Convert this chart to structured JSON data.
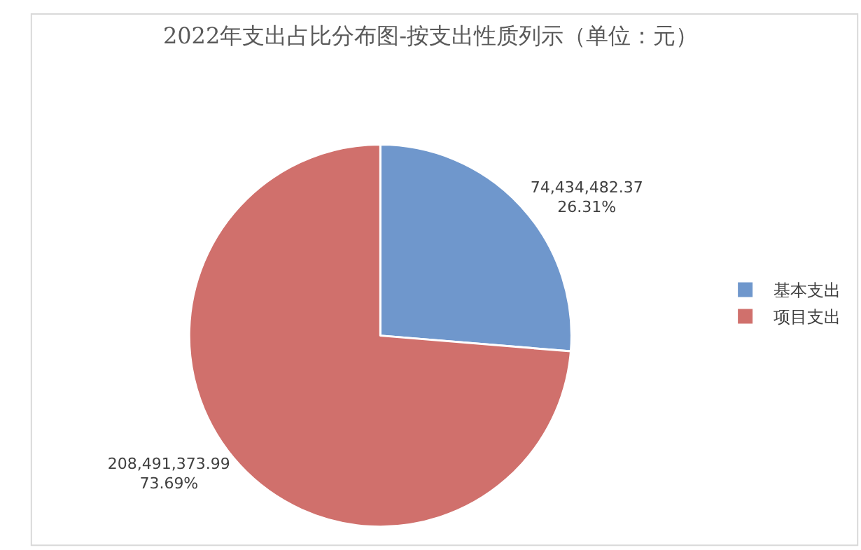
{
  "chart_data": {
    "type": "pie",
    "title": "2022年支出占比分布图-按支出性质列示（单位：元）",
    "categories": [
      "基本支出",
      "项目支出"
    ],
    "values": [
      74434482.37,
      208491373.99
    ],
    "colors": [
      "#6f97cc",
      "#d0706c"
    ],
    "value_labels": [
      "74,434,482.37\n26.31%",
      "208,491,373.99\n73.69%"
    ],
    "legend": "right"
  }
}
